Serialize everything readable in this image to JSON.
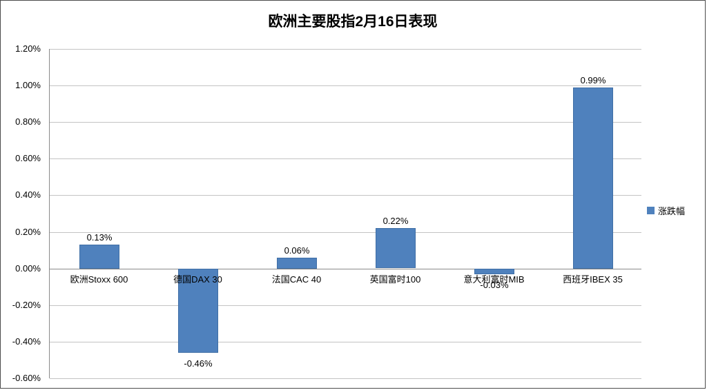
{
  "legend": {
    "label": "涨跌幅",
    "color": "#4F81BD"
  },
  "chart_data": {
    "type": "bar",
    "title": "欧洲主要股指2月16日表现",
    "categories": [
      "欧洲Stoxx 600",
      "德国DAX 30",
      "法国CAC 40",
      "英国富时100",
      "意大利富时MIB",
      "西班牙IBEX 35"
    ],
    "series": [
      {
        "name": "涨跌幅",
        "values": [
          0.13,
          -0.46,
          0.06,
          0.22,
          -0.03,
          0.99
        ]
      }
    ],
    "value_labels": [
      "0.13%",
      "-0.46%",
      "0.06%",
      "0.22%",
      "-0.03%",
      "0.99%"
    ],
    "unit": "%",
    "xlabel": "",
    "ylabel": "",
    "ylim": [
      -0.6,
      1.2
    ],
    "yticks": [
      {
        "value": 1.2,
        "label": "1.20%"
      },
      {
        "value": 1.0,
        "label": "1.00%"
      },
      {
        "value": 0.8,
        "label": "0.80%"
      },
      {
        "value": 0.6,
        "label": "0.60%"
      },
      {
        "value": 0.4,
        "label": "0.40%"
      },
      {
        "value": 0.2,
        "label": "0.20%"
      },
      {
        "value": 0.0,
        "label": "0.00%"
      },
      {
        "value": -0.2,
        "label": "-0.20%"
      },
      {
        "value": -0.4,
        "label": "-0.40%"
      },
      {
        "value": -0.6,
        "label": "-0.60%"
      }
    ],
    "bar_color": "#4F81BD",
    "grid": true,
    "legend_position": "right"
  }
}
